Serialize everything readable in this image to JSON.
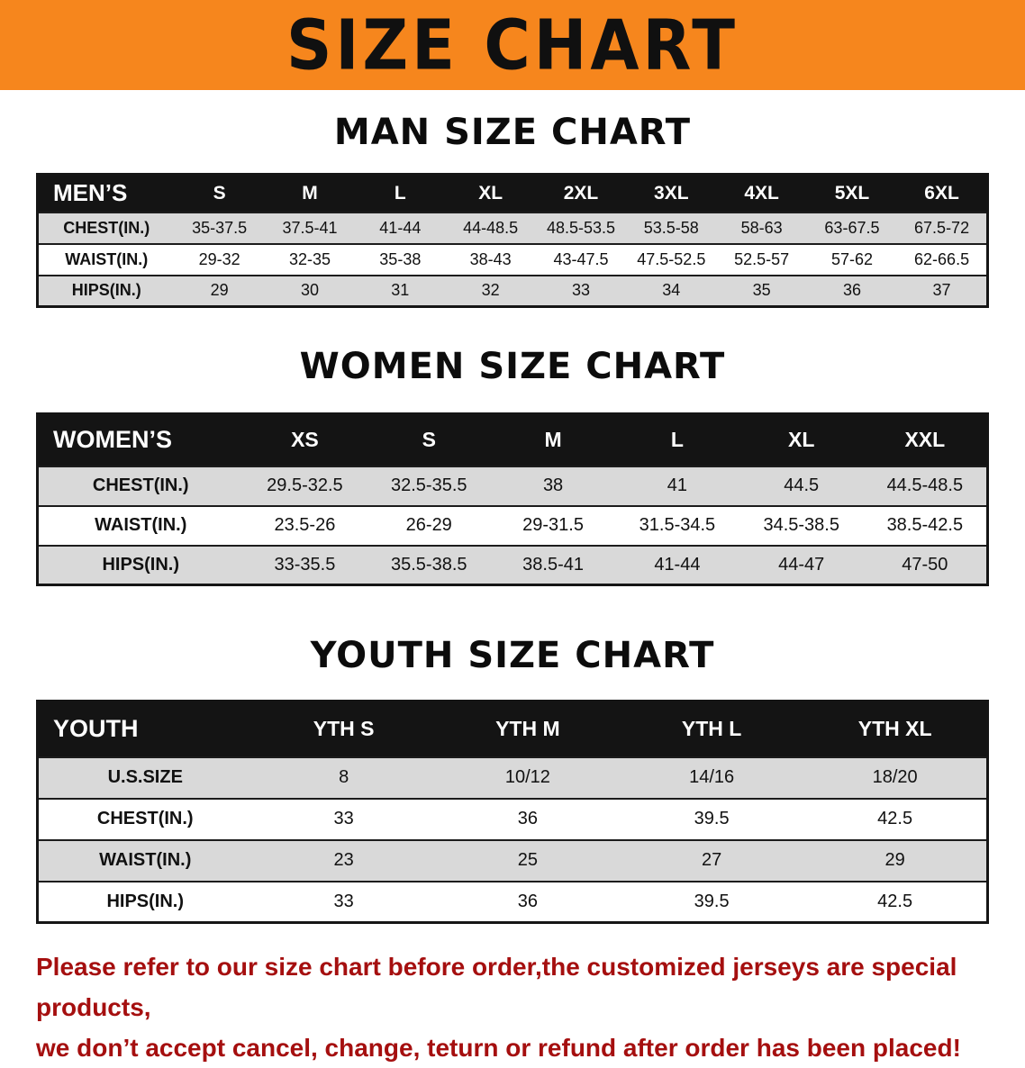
{
  "banner": {
    "title": "SIZE CHART"
  },
  "sections": {
    "men": {
      "heading": "MAN SIZE CHART",
      "table": {
        "header": [
          "MEN’S",
          "S",
          "M",
          "L",
          "XL",
          "2XL",
          "3XL",
          "4XL",
          "5XL",
          "6XL"
        ],
        "rows": [
          {
            "label": "CHEST(IN.)",
            "values": [
              "35-37.5",
              "37.5-41",
              "41-44",
              "44-48.5",
              "48.5-53.5",
              "53.5-58",
              "58-63",
              "63-67.5",
              "67.5-72"
            ]
          },
          {
            "label": "WAIST(IN.)",
            "values": [
              "29-32",
              "32-35",
              "35-38",
              "38-43",
              "43-47.5",
              "47.5-52.5",
              "52.5-57",
              "57-62",
              "62-66.5"
            ]
          },
          {
            "label": "HIPS(IN.)",
            "values": [
              "29",
              "30",
              "31",
              "32",
              "33",
              "34",
              "35",
              "36",
              "37"
            ]
          }
        ]
      }
    },
    "women": {
      "heading": "WOMEN SIZE CHART",
      "table": {
        "header": [
          "WOMEN’S",
          "XS",
          "S",
          "M",
          "L",
          "XL",
          "XXL"
        ],
        "rows": [
          {
            "label": "CHEST(IN.)",
            "values": [
              "29.5-32.5",
              "32.5-35.5",
              "38",
              "41",
              "44.5",
              "44.5-48.5"
            ]
          },
          {
            "label": "WAIST(IN.)",
            "values": [
              "23.5-26",
              "26-29",
              "29-31.5",
              "31.5-34.5",
              "34.5-38.5",
              "38.5-42.5"
            ]
          },
          {
            "label": "HIPS(IN.)",
            "values": [
              "33-35.5",
              "35.5-38.5",
              "38.5-41",
              "41-44",
              "44-47",
              "47-50"
            ]
          }
        ]
      }
    },
    "youth": {
      "heading": "YOUTH SIZE CHART",
      "table": {
        "header": [
          "YOUTH",
          "YTH S",
          "YTH M",
          "YTH L",
          "YTH XL"
        ],
        "rows": [
          {
            "label": "U.S.SIZE",
            "values": [
              "8",
              "10/12",
              "14/16",
              "18/20"
            ]
          },
          {
            "label": "CHEST(IN.)",
            "values": [
              "33",
              "36",
              "39.5",
              "42.5"
            ]
          },
          {
            "label": "WAIST(IN.)",
            "values": [
              "23",
              "25",
              "27",
              "29"
            ]
          },
          {
            "label": "HIPS(IN.)",
            "values": [
              "33",
              "36",
              "39.5",
              "42.5"
            ]
          }
        ]
      }
    }
  },
  "footer": {
    "line1": "Please refer to our size chart before order,the customized jerseys are special products,",
    "line2": "we don’t accept cancel, change, teturn or refund after order has been placed!"
  },
  "colors": {
    "banner_bg": "#F6861D",
    "title_text": "#101010",
    "table_header_bg": "#141414",
    "table_header_text": "#FFFFFF",
    "row_stripe": "#D9D9D9",
    "footer_text": "#A50F0F"
  }
}
